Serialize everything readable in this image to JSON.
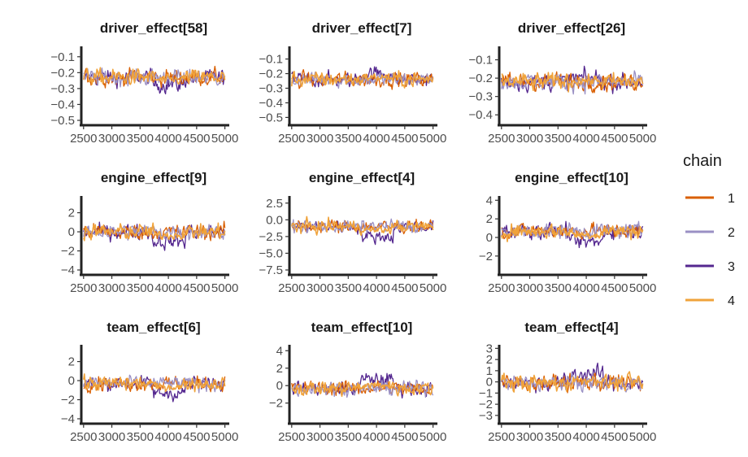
{
  "chart_data": {
    "type": "line",
    "layout": "facet-grid-3x3",
    "x_ticks": [
      2500,
      3000,
      3500,
      4000,
      4500,
      5000
    ],
    "xlim": [
      2460,
      5020
    ],
    "legend": {
      "title": "chain",
      "position": "right",
      "entries": [
        {
          "label": "1",
          "color": "#D95F02"
        },
        {
          "label": "2",
          "color": "#9A90C4"
        },
        {
          "label": "3",
          "color": "#54278F"
        },
        {
          "label": "4",
          "color": "#F0A33B"
        }
      ]
    },
    "panels": [
      {
        "title": "driver_effect[58]",
        "ylim": [
          -0.5,
          -0.05
        ],
        "y_ticks": [
          -0.1,
          -0.2,
          -0.3,
          -0.4,
          -0.5
        ],
        "y_tick_labels": [
          "−0.1",
          "−0.2",
          "−0.3",
          "−0.4",
          "−0.5"
        ],
        "mean": -0.23,
        "spread": 0.07,
        "chain3_dip": -0.045
      },
      {
        "title": "driver_effect[7]",
        "ylim": [
          -0.52,
          -0.03
        ],
        "y_ticks": [
          -0.1,
          -0.2,
          -0.3,
          -0.4,
          -0.5
        ],
        "y_tick_labels": [
          "−0.1",
          "−0.2",
          "−0.3",
          "−0.4",
          "−0.5"
        ],
        "mean": -0.24,
        "spread": 0.07,
        "chain3_dip": 0.04
      },
      {
        "title": "driver_effect[26]",
        "ylim": [
          -0.43,
          -0.04
        ],
        "y_ticks": [
          -0.1,
          -0.2,
          -0.3,
          -0.4
        ],
        "y_tick_labels": [
          "−0.1",
          "−0.2",
          "−0.3",
          "−0.4"
        ],
        "mean": -0.22,
        "spread": 0.065,
        "chain3_dip": 0.02
      },
      {
        "title": "engine_effect[9]",
        "ylim": [
          -4,
          3.5
        ],
        "y_ticks": [
          2,
          0,
          -2,
          -4
        ],
        "y_tick_labels": [
          "2",
          "0",
          "−2",
          "−4"
        ],
        "mean": 0.0,
        "spread": 1.1,
        "chain3_dip": -1.0
      },
      {
        "title": "engine_effect[4]",
        "ylim": [
          -7.5,
          3.2
        ],
        "y_ticks": [
          2.5,
          0.0,
          -2.5,
          -5.0,
          -7.5
        ],
        "y_tick_labels": [
          "2.5",
          "0.0",
          "−2.5",
          "−5.0",
          "−7.5"
        ],
        "mean": -1.0,
        "spread": 1.3,
        "chain3_dip": -1.5
      },
      {
        "title": "engine_effect[10]",
        "ylim": [
          -3.5,
          4.2
        ],
        "y_ticks": [
          4,
          2,
          0,
          -2
        ],
        "y_tick_labels": [
          "4",
          "2",
          "0",
          "−2"
        ],
        "mean": 0.7,
        "spread": 1.1,
        "chain3_dip": -1.2
      },
      {
        "title": "team_effect[6]",
        "ylim": [
          -4,
          3.5
        ],
        "y_ticks": [
          2,
          0,
          -2,
          -4
        ],
        "y_tick_labels": [
          "2",
          "0",
          "−2",
          "−4"
        ],
        "mean": -0.3,
        "spread": 1.0,
        "chain3_dip": -1.0
      },
      {
        "title": "team_effect[10]",
        "ylim": [
          -3.8,
          4.4
        ],
        "y_ticks": [
          4,
          2,
          0,
          -2
        ],
        "y_tick_labels": [
          "4",
          "2",
          "0",
          "−2"
        ],
        "mean": -0.3,
        "spread": 1.1,
        "chain3_dip": 1.0
      },
      {
        "title": "team_effect[4]",
        "ylim": [
          -3.3,
          3.1
        ],
        "y_ticks": [
          3,
          2,
          1,
          0,
          -1,
          -2,
          -3
        ],
        "y_tick_labels": [
          "3",
          "2",
          "1",
          "0",
          "−1",
          "−2",
          "−3"
        ],
        "mean": -0.1,
        "spread": 1.0,
        "chain3_dip": 0.8
      }
    ]
  }
}
